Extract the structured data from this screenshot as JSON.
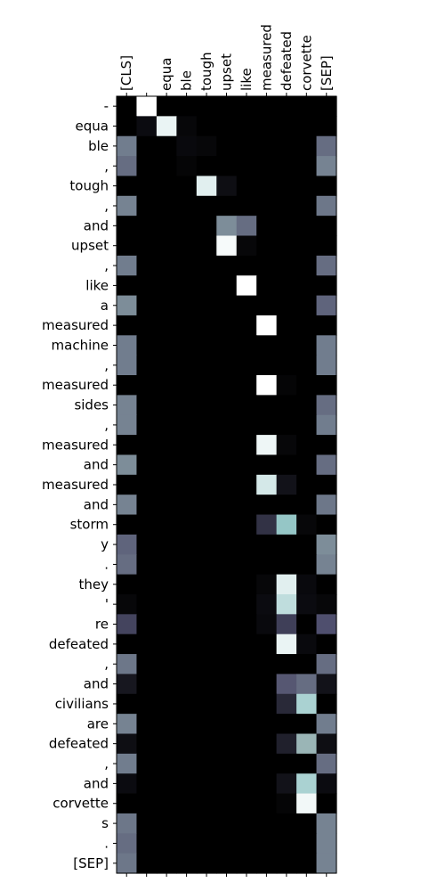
{
  "chart_data": {
    "type": "heatmap",
    "colormap": "bone",
    "x_labels": [
      "[CLS]",
      "",
      "equa",
      "ble",
      "tough",
      "upset",
      "like",
      "measured",
      "defeated",
      "corvette",
      "[SEP]"
    ],
    "y_labels": [
      "-",
      "equa",
      "ble",
      ",",
      "tough",
      ",",
      "and",
      "upset",
      ",",
      "like",
      "a",
      "measured",
      "machine",
      ",",
      "measured",
      "sides",
      ",",
      "measured",
      "and",
      "measured",
      "and",
      "storm",
      "y",
      ".",
      "they",
      "'",
      "re",
      "defeated",
      ",",
      "and",
      "civilians",
      "are",
      "defeated",
      ",",
      "and",
      "corvette",
      "s",
      ".",
      "[SEP]"
    ],
    "values": [
      [
        0.0,
        1.0,
        0.0,
        0.0,
        0.0,
        0.0,
        0.0,
        0.0,
        0.0,
        0.0,
        0.0
      ],
      [
        0.0,
        0.05,
        0.95,
        0.03,
        0.0,
        0.0,
        0.0,
        0.0,
        0.0,
        0.0,
        0.0
      ],
      [
        0.5,
        0.0,
        0.0,
        0.04,
        0.03,
        0.0,
        0.0,
        0.0,
        0.0,
        0.0,
        0.45
      ],
      [
        0.45,
        0.0,
        0.0,
        0.02,
        0.0,
        0.0,
        0.0,
        0.0,
        0.0,
        0.0,
        0.52
      ],
      [
        0.0,
        0.0,
        0.0,
        0.0,
        0.93,
        0.06,
        0.0,
        0.0,
        0.0,
        0.0,
        0.0
      ],
      [
        0.52,
        0.0,
        0.0,
        0.0,
        0.0,
        0.0,
        0.0,
        0.0,
        0.0,
        0.0,
        0.48
      ],
      [
        0.0,
        0.0,
        0.0,
        0.0,
        0.0,
        0.55,
        0.45,
        0.0,
        0.0,
        0.0,
        0.0
      ],
      [
        0.0,
        0.0,
        0.0,
        0.0,
        0.0,
        0.98,
        0.03,
        0.0,
        0.0,
        0.0,
        0.0
      ],
      [
        0.5,
        0.0,
        0.0,
        0.0,
        0.0,
        0.0,
        0.0,
        0.0,
        0.0,
        0.0,
        0.45
      ],
      [
        0.0,
        0.0,
        0.0,
        0.0,
        0.0,
        0.0,
        1.0,
        0.0,
        0.0,
        0.0,
        0.0
      ],
      [
        0.55,
        0.0,
        0.0,
        0.0,
        0.0,
        0.0,
        0.0,
        0.0,
        0.0,
        0.0,
        0.42
      ],
      [
        0.0,
        0.0,
        0.0,
        0.0,
        0.0,
        0.0,
        0.0,
        1.0,
        0.0,
        0.0,
        0.0
      ],
      [
        0.5,
        0.0,
        0.0,
        0.0,
        0.0,
        0.0,
        0.0,
        0.0,
        0.0,
        0.0,
        0.5
      ],
      [
        0.5,
        0.0,
        0.0,
        0.0,
        0.0,
        0.0,
        0.0,
        0.0,
        0.0,
        0.0,
        0.5
      ],
      [
        0.0,
        0.0,
        0.0,
        0.0,
        0.0,
        0.0,
        0.0,
        1.0,
        0.02,
        0.0,
        0.0
      ],
      [
        0.52,
        0.0,
        0.0,
        0.0,
        0.0,
        0.0,
        0.0,
        0.0,
        0.0,
        0.0,
        0.45
      ],
      [
        0.52,
        0.0,
        0.0,
        0.0,
        0.0,
        0.0,
        0.0,
        0.0,
        0.0,
        0.0,
        0.5
      ],
      [
        0.0,
        0.0,
        0.0,
        0.0,
        0.0,
        0.0,
        0.0,
        0.96,
        0.03,
        0.0,
        0.0
      ],
      [
        0.55,
        0.0,
        0.0,
        0.0,
        0.0,
        0.0,
        0.0,
        0.0,
        0.0,
        0.0,
        0.45
      ],
      [
        0.0,
        0.0,
        0.0,
        0.0,
        0.0,
        0.0,
        0.0,
        0.9,
        0.08,
        0.0,
        0.0
      ],
      [
        0.52,
        0.0,
        0.0,
        0.0,
        0.0,
        0.0,
        0.0,
        0.0,
        0.0,
        0.0,
        0.48
      ],
      [
        0.0,
        0.0,
        0.0,
        0.0,
        0.0,
        0.0,
        0.0,
        0.22,
        0.75,
        0.03,
        0.0
      ],
      [
        0.42,
        0.0,
        0.0,
        0.0,
        0.0,
        0.0,
        0.0,
        0.0,
        0.0,
        0.0,
        0.55
      ],
      [
        0.45,
        0.0,
        0.0,
        0.0,
        0.0,
        0.0,
        0.0,
        0.0,
        0.0,
        0.0,
        0.52
      ],
      [
        0.0,
        0.0,
        0.0,
        0.0,
        0.0,
        0.0,
        0.0,
        0.03,
        0.93,
        0.04,
        0.0
      ],
      [
        0.03,
        0.0,
        0.0,
        0.0,
        0.0,
        0.0,
        0.0,
        0.05,
        0.85,
        0.05,
        0.03
      ],
      [
        0.3,
        0.0,
        0.0,
        0.0,
        0.0,
        0.0,
        0.0,
        0.04,
        0.28,
        0.0,
        0.35
      ],
      [
        0.0,
        0.0,
        0.0,
        0.0,
        0.0,
        0.0,
        0.0,
        0.0,
        0.95,
        0.04,
        0.0
      ],
      [
        0.48,
        0.0,
        0.0,
        0.0,
        0.0,
        0.0,
        0.0,
        0.0,
        0.0,
        0.0,
        0.45
      ],
      [
        0.1,
        0.0,
        0.0,
        0.0,
        0.0,
        0.0,
        0.0,
        0.0,
        0.38,
        0.45,
        0.08
      ],
      [
        0.0,
        0.0,
        0.0,
        0.0,
        0.0,
        0.0,
        0.0,
        0.0,
        0.18,
        0.8,
        0.0
      ],
      [
        0.52,
        0.0,
        0.0,
        0.0,
        0.0,
        0.0,
        0.0,
        0.0,
        0.0,
        0.0,
        0.5
      ],
      [
        0.06,
        0.0,
        0.0,
        0.0,
        0.0,
        0.0,
        0.0,
        0.0,
        0.14,
        0.68,
        0.06
      ],
      [
        0.5,
        0.0,
        0.0,
        0.0,
        0.0,
        0.0,
        0.0,
        0.0,
        0.0,
        0.0,
        0.45
      ],
      [
        0.05,
        0.0,
        0.0,
        0.0,
        0.0,
        0.0,
        0.0,
        0.0,
        0.08,
        0.8,
        0.05
      ],
      [
        0.0,
        0.0,
        0.0,
        0.0,
        0.0,
        0.0,
        0.0,
        0.0,
        0.02,
        0.97,
        0.0
      ],
      [
        0.48,
        0.0,
        0.0,
        0.0,
        0.0,
        0.0,
        0.0,
        0.0,
        0.0,
        0.0,
        0.52
      ],
      [
        0.45,
        0.0,
        0.0,
        0.0,
        0.0,
        0.0,
        0.0,
        0.0,
        0.0,
        0.0,
        0.52
      ],
      [
        0.48,
        0.0,
        0.0,
        0.0,
        0.0,
        0.0,
        0.0,
        0.0,
        0.0,
        0.0,
        0.52
      ]
    ],
    "value_range": [
      0,
      1
    ],
    "grid": false,
    "legend": "none"
  }
}
